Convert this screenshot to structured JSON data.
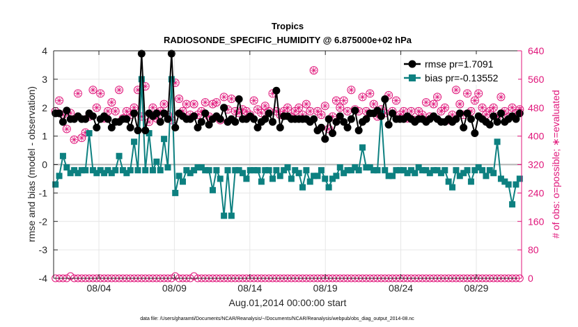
{
  "chart_data": {
    "type": "line",
    "title": "Tropics",
    "subtitle": "RADIOSONDE_SPECIFIC_HUMIDITY @ 6.875000e+02 hPa",
    "xlabel": "Aug.01,2014 00:00:00 start",
    "ylabel_left": "rmse and bias (model - observation)",
    "ylabel_right": "# of obs: o=possible; ∗=evaluated",
    "ylim_left": [
      -4,
      4
    ],
    "ylim_right": [
      0,
      640
    ],
    "x_start_day": 1,
    "x_end_day": 32,
    "x_ticks": [
      {
        "day": 4,
        "label": "08/04"
      },
      {
        "day": 9,
        "label": "08/09"
      },
      {
        "day": 14,
        "label": "08/14"
      },
      {
        "day": 19,
        "label": "08/19"
      },
      {
        "day": 24,
        "label": "08/24"
      },
      {
        "day": 29,
        "label": "08/29"
      }
    ],
    "y_ticks_left": [
      "-4",
      "-3",
      "-2",
      "-1",
      "0",
      "1",
      "2",
      "3",
      "4"
    ],
    "y_ticks_right": [
      "0",
      "80",
      "160",
      "240",
      "320",
      "400",
      "480",
      "560",
      "640"
    ],
    "grid": true,
    "legend_position": "top-right",
    "colors": {
      "rmse": "#000000",
      "bias": "#0d8080",
      "obs": "#e0157a",
      "axis": "#262626",
      "grid": "#e6e6e6",
      "zero": "#b3b3b3"
    },
    "footer": "data file: /Users/gharamti/Documents/NCAR/Reanalysis/~/Documents/NCAR/Reanalysis/webpub/obs_diag_output_2014-08.nc",
    "series": [
      {
        "name": "rmse pr=1.7091",
        "axis": "left",
        "values": [
          1.8,
          1.8,
          1.5,
          1.9,
          1.6,
          1.6,
          1.7,
          1.6,
          1.6,
          1.8,
          1.7,
          1.3,
          1.6,
          1.7,
          1.6,
          1.3,
          1.5,
          1.5,
          1.6,
          1.6,
          1.3,
          1.8,
          1.2,
          3.9,
          1.2,
          1.8,
          1.7,
          1.8,
          1.5,
          1.8,
          1.6,
          3.9,
          1.3,
          1.8,
          1.7,
          1.6,
          1.6,
          1.7,
          1.3,
          1.5,
          1.8,
          1.4,
          1.6,
          1.7,
          1.6,
          2.0,
          1.5,
          1.6,
          1.5,
          2.3,
          1.6,
          1.6,
          1.7,
          1.6,
          1.3,
          1.5,
          1.6,
          1.8,
          1.5,
          2.6,
          1.3,
          1.7,
          1.7,
          1.6,
          1.6,
          1.6,
          1.6,
          1.6,
          1.5,
          1.6,
          1.2,
          1.3,
          0.9,
          1.6,
          1.1,
          1.5,
          1.7,
          1.5,
          1.3,
          1.6,
          1.9,
          1.2,
          1.5,
          1.6,
          1.8,
          1.8,
          1.9,
          1.7,
          2.3,
          1.4,
          1.8,
          1.6,
          1.6,
          1.6,
          1.7,
          1.6,
          1.5,
          1.6,
          1.6,
          1.5,
          1.6,
          1.7,
          1.6,
          1.5,
          1.5,
          1.6,
          1.5,
          1.6,
          1.8,
          1.3,
          1.8,
          1.6,
          1.1,
          1.7,
          1.6,
          1.5,
          1.4,
          1.7,
          1.5,
          1.8,
          1.5,
          1.6,
          1.7,
          1.6,
          1.8
        ]
      },
      {
        "name": "bias pr=-0.13552",
        "axis": "left",
        "values": [
          -0.7,
          -0.4,
          0.3,
          -0.1,
          -0.3,
          -0.2,
          -0.3,
          -0.2,
          -0.2,
          1.1,
          -0.2,
          -0.3,
          -0.2,
          -0.3,
          -0.2,
          -0.3,
          -0.2,
          0.3,
          -0.2,
          -0.3,
          -0.2,
          0.8,
          -0.2,
          3.0,
          -0.2,
          1.1,
          -0.2,
          0.1,
          -0.2,
          0.9,
          -0.1,
          3.0,
          -1.0,
          -0.4,
          -0.6,
          -0.2,
          -0.3,
          -0.2,
          -0.1,
          -0.1,
          -0.2,
          -0.2,
          -0.9,
          -0.2,
          -0.5,
          -1.8,
          -0.2,
          -1.8,
          -0.2,
          -0.2,
          -0.3,
          -0.5,
          -0.2,
          -0.2,
          -0.2,
          -0.6,
          -0.2,
          -0.2,
          -0.5,
          -0.2,
          -0.4,
          -0.2,
          -0.1,
          -0.5,
          -0.2,
          -0.3,
          -0.8,
          -0.2,
          -0.6,
          -0.4,
          -0.4,
          -0.2,
          -0.5,
          -0.8,
          -0.5,
          -0.4,
          -0.1,
          -0.3,
          -0.2,
          -0.2,
          -0.1,
          -0.2,
          0.6,
          -0.1,
          -0.1,
          -0.2,
          -0.2,
          1.8,
          -0.2,
          -0.4,
          -0.4,
          -0.2,
          -0.2,
          -0.2,
          -0.3,
          -0.2,
          -0.3,
          -0.1,
          -0.2,
          -0.2,
          -0.3,
          -0.2,
          -0.2,
          -0.3,
          -0.2,
          -0.6,
          -0.8,
          -0.2,
          -0.4,
          -0.3,
          -0.2,
          -0.6,
          -0.2,
          -0.1,
          -0.2,
          -0.4,
          -0.2,
          -0.3,
          0.8,
          -0.5,
          -0.6,
          -0.7,
          -1.4,
          -0.7,
          -0.5
        ]
      },
      {
        "name": "possible",
        "axis": "right",
        "values": [
          0,
          0,
          0,
          0,
          6,
          0,
          0,
          0,
          0,
          0,
          0,
          0,
          0,
          0,
          0,
          0,
          0,
          0,
          0,
          0,
          0,
          0,
          0,
          0,
          0,
          0,
          0,
          0,
          0,
          0,
          0,
          0,
          6,
          0,
          0,
          0,
          0,
          6,
          0,
          0,
          0,
          0,
          0,
          0,
          0,
          0,
          0,
          0,
          0,
          0,
          0,
          0,
          0,
          0,
          0,
          0,
          0,
          0,
          0,
          0,
          0,
          0,
          0,
          0,
          0,
          0,
          0,
          0,
          0,
          0,
          0,
          0,
          0,
          0,
          0,
          0,
          0,
          0,
          0,
          0,
          0,
          0,
          0,
          0,
          0,
          0,
          0,
          0,
          0,
          0,
          0,
          0,
          0,
          0,
          0,
          0,
          0,
          0,
          0,
          0,
          0,
          0,
          0,
          0,
          0,
          0,
          0,
          0,
          0,
          0,
          0,
          0,
          0,
          0,
          0,
          0,
          0,
          0,
          0,
          0,
          0,
          0,
          0,
          0,
          0
        ]
      },
      {
        "name": "evaluated",
        "axis": "right",
        "values": [
          470,
          500,
          460,
          420,
          465,
          390,
          520,
          395,
          410,
          455,
          530,
          480,
          520,
          450,
          470,
          495,
          470,
          530,
          450,
          470,
          460,
          480,
          530,
          455,
          540,
          440,
          480,
          450,
          470,
          490,
          460,
          445,
          550,
          505,
          470,
          490,
          460,
          490,
          460,
          470,
          495,
          455,
          490,
          495,
          445,
          510,
          475,
          505,
          470,
          465,
          475,
          470,
          460,
          500,
          475,
          465,
          485,
          470,
          520,
          470,
          460,
          470,
          480,
          455,
          470,
          480,
          460,
          490,
          470,
          585,
          470,
          460,
          485,
          420,
          455,
          500,
          480,
          500,
          470,
          530,
          475,
          470,
          510,
          470,
          520,
          490,
          455,
          475,
          465,
          515,
          470,
          500,
          460,
          470,
          450,
          470,
          445,
          470,
          460,
          495,
          455,
          490,
          510,
          470,
          480,
          445,
          460,
          530,
          490,
          460,
          520,
          470,
          500,
          520,
          480,
          460,
          470,
          480,
          455,
          510,
          470,
          455,
          480,
          465,
          475
        ]
      }
    ]
  }
}
